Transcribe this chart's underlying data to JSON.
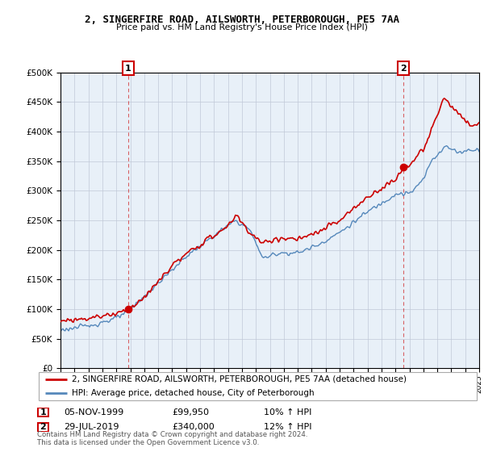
{
  "title": "2, SINGERFIRE ROAD, AILSWORTH, PETERBOROUGH, PE5 7AA",
  "subtitle": "Price paid vs. HM Land Registry's House Price Index (HPI)",
  "legend_label_red": "2, SINGERFIRE ROAD, AILSWORTH, PETERBOROUGH, PE5 7AA (detached house)",
  "legend_label_blue": "HPI: Average price, detached house, City of Peterborough",
  "annotation1_date": "05-NOV-1999",
  "annotation1_price": "£99,950",
  "annotation1_hpi": "10% ↑ HPI",
  "annotation2_date": "29-JUL-2019",
  "annotation2_price": "£340,000",
  "annotation2_hpi": "12% ↑ HPI",
  "footer": "Contains HM Land Registry data © Crown copyright and database right 2024.\nThis data is licensed under the Open Government Licence v3.0.",
  "red_color": "#cc0000",
  "blue_color": "#5588bb",
  "chart_bg": "#e8f0f8",
  "background_color": "#ffffff",
  "grid_color": "#c0c8d8",
  "ylim": [
    0,
    500000
  ],
  "yticks": [
    0,
    50000,
    100000,
    150000,
    200000,
    250000,
    300000,
    350000,
    400000,
    450000,
    500000
  ],
  "sale1_year": 1999.85,
  "sale1_price": 99950,
  "sale2_year": 2019.58,
  "sale2_price": 340000
}
